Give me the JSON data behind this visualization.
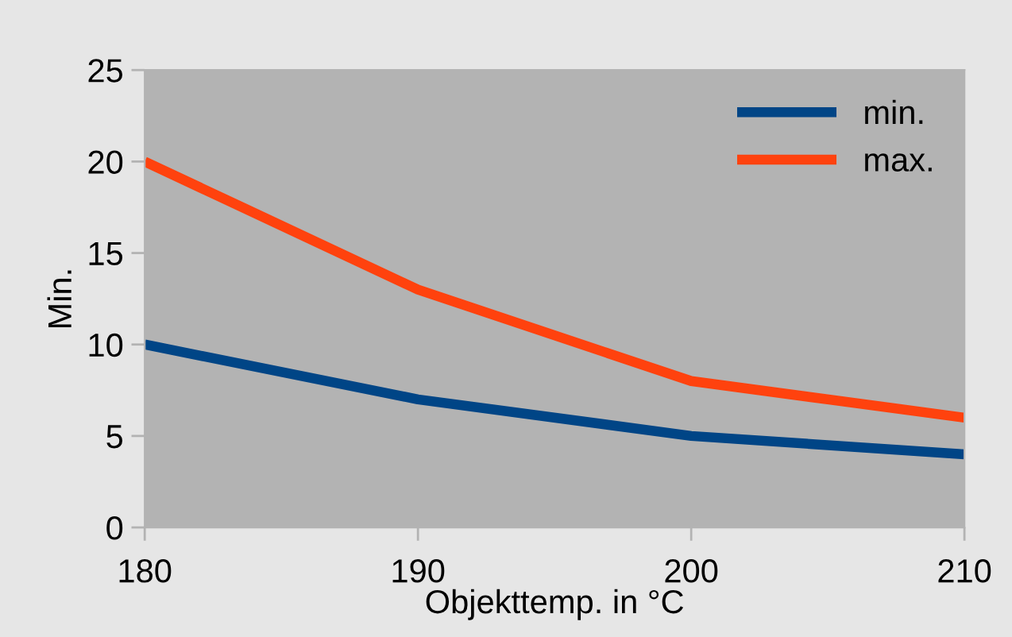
{
  "chart_data": {
    "type": "line",
    "xlabel": "Objekttemp. in °C",
    "ylabel": "Min.",
    "x": [
      180,
      190,
      200,
      210
    ],
    "series": [
      {
        "name": "min.",
        "color": "#004586",
        "values": [
          10,
          7,
          5,
          4
        ]
      },
      {
        "name": "max.",
        "color": "#ff420e",
        "values": [
          20,
          13,
          8,
          6
        ]
      }
    ],
    "xlim": [
      180,
      210
    ],
    "xticks": [
      180,
      190,
      200,
      210
    ],
    "ylim": [
      0,
      25
    ],
    "yticks": [
      0,
      5,
      10,
      15,
      20,
      25
    ],
    "legend": "top right",
    "marker": "none",
    "line_style": "solid"
  }
}
